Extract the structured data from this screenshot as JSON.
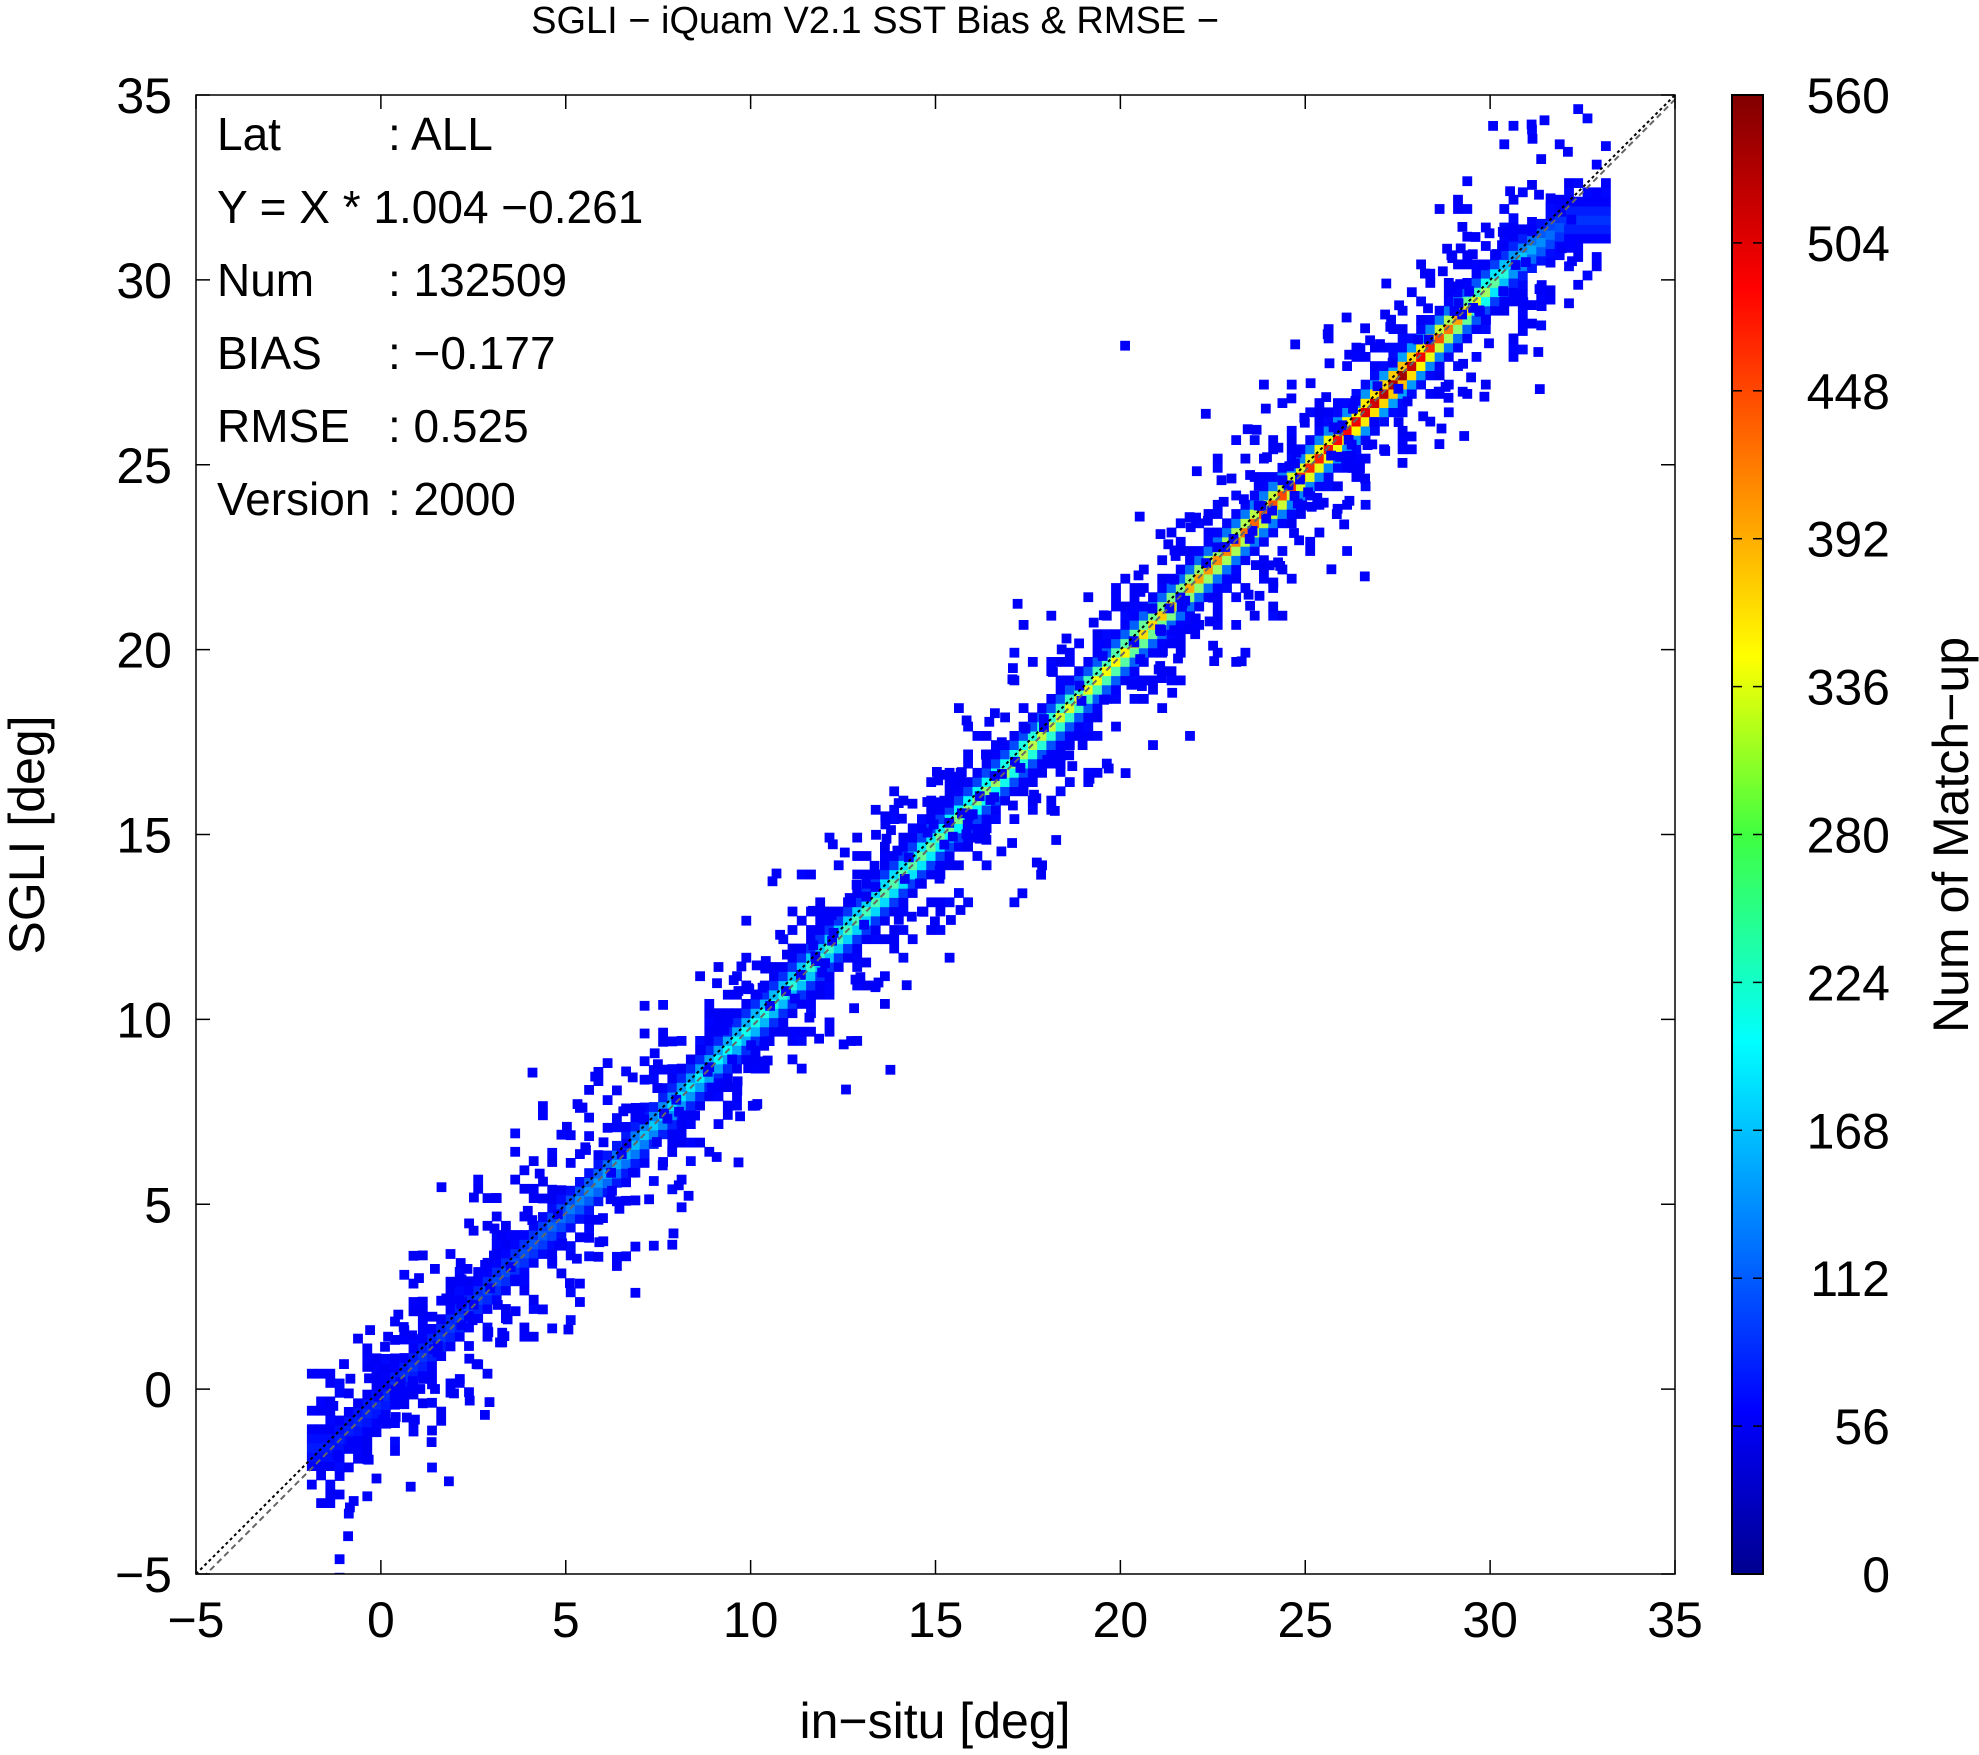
{
  "chart_data": {
    "type": "heatmap",
    "title": "SGLI − iQuam V2.1 SST Bias & RMSE  −",
    "xlabel": "in−situ [deg]",
    "ylabel": "SGLI [deg]",
    "xlim": [
      -5,
      35
    ],
    "ylim": [
      -5,
      35
    ],
    "xticks": [
      -5,
      0,
      5,
      10,
      15,
      20,
      25,
      30,
      35
    ],
    "yticks": [
      -5,
      0,
      5,
      10,
      15,
      20,
      25,
      30,
      35
    ],
    "xtick_labels": [
      "−5",
      "0",
      "5",
      "10",
      "15",
      "20",
      "25",
      "30",
      "35"
    ],
    "ytick_labels": [
      "−5",
      "0",
      "5",
      "10",
      "15",
      "20",
      "25",
      "30",
      "35"
    ],
    "grid": false,
    "colorbar": {
      "label": "Num of Match−up",
      "min": 0,
      "max": 560,
      "ticks": [
        0,
        56,
        112,
        168,
        224,
        280,
        336,
        392,
        448,
        504,
        560
      ],
      "colormap": "jet"
    },
    "stats": [
      {
        "key": "Lat",
        "value": ": ALL"
      },
      {
        "key": "Y = X * 1.004 −0.261",
        "value": ""
      },
      {
        "key": "Num",
        "value": ": 132509"
      },
      {
        "key": "BIAS",
        "value": ": −0.177"
      },
      {
        "key": "RMSE",
        "value": ": 0.525"
      },
      {
        "key": "Version",
        "value": ": 2000"
      }
    ],
    "reference_lines": [
      {
        "name": "one-to-one",
        "slope": 1,
        "intercept": 0,
        "style": "dotted"
      },
      {
        "name": "regression",
        "slope": 1.004,
        "intercept": -0.261,
        "style": "dashed"
      }
    ],
    "density_ridge": [
      {
        "x": -1.5,
        "y": -1.7,
        "count": 25
      },
      {
        "x": 0,
        "y": -0.3,
        "count": 35
      },
      {
        "x": 2,
        "y": 1.8,
        "count": 45
      },
      {
        "x": 4,
        "y": 3.8,
        "count": 60
      },
      {
        "x": 6,
        "y": 5.7,
        "count": 110
      },
      {
        "x": 8,
        "y": 7.8,
        "count": 150
      },
      {
        "x": 10,
        "y": 9.8,
        "count": 180
      },
      {
        "x": 12,
        "y": 11.8,
        "count": 200
      },
      {
        "x": 14,
        "y": 13.8,
        "count": 220
      },
      {
        "x": 16,
        "y": 15.8,
        "count": 250
      },
      {
        "x": 18,
        "y": 17.8,
        "count": 290
      },
      {
        "x": 20,
        "y": 19.8,
        "count": 330
      },
      {
        "x": 22,
        "y": 21.8,
        "count": 380
      },
      {
        "x": 24,
        "y": 23.8,
        "count": 430
      },
      {
        "x": 26,
        "y": 25.8,
        "count": 480
      },
      {
        "x": 27.5,
        "y": 27.3,
        "count": 540
      },
      {
        "x": 29,
        "y": 28.8,
        "count": 380
      },
      {
        "x": 30.5,
        "y": 30.3,
        "count": 150
      },
      {
        "x": 32,
        "y": 31.5,
        "count": 40
      }
    ]
  }
}
